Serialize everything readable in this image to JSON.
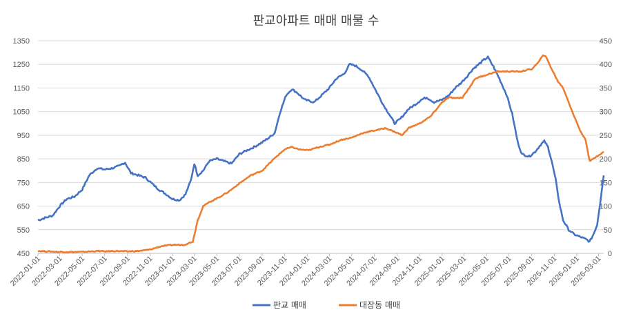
{
  "chart_data": {
    "type": "line",
    "title": "판교아파트 매매 매물 수",
    "x_start": "2022-01-01",
    "x_end": "2026-03-15",
    "x_tick_labels": [
      "2022-01-01",
      "2022-03-01",
      "2022-05-01",
      "2022-07-01",
      "2022-09-01",
      "2022-11-01",
      "2023-01-01",
      "2023-03-01",
      "2023-05-01",
      "2023-07-01",
      "2023-09-01",
      "2023-11-01",
      "2024-01-01",
      "2024-03-01",
      "2024-05-01",
      "2024-07-01",
      "2024-09-01",
      "2024-11-01",
      "2025-01-01",
      "2025-03-01",
      "2025-05-01",
      "2025-07-01",
      "2025-09-01",
      "2025-11-01",
      "2026-01-01",
      "2026-03-01"
    ],
    "y_left": {
      "min": 450,
      "max": 1350,
      "ticks": [
        450,
        550,
        650,
        750,
        850,
        950,
        1050,
        1150,
        1250,
        1350
      ]
    },
    "y_right": {
      "min": 0,
      "max": 450,
      "ticks": [
        0,
        50,
        100,
        150,
        200,
        250,
        300,
        350,
        400,
        450
      ]
    },
    "grid": true,
    "legend_position": "bottom",
    "series": [
      {
        "name": "판교 매매",
        "axis": "left",
        "color": "#4472C4",
        "points": [
          [
            "2022-01-01",
            590
          ],
          [
            "2022-01-20",
            600
          ],
          [
            "2022-02-10",
            610
          ],
          [
            "2022-03-01",
            650
          ],
          [
            "2022-03-20",
            680
          ],
          [
            "2022-04-10",
            690
          ],
          [
            "2022-05-01",
            720
          ],
          [
            "2022-05-20",
            780
          ],
          [
            "2022-06-10",
            810
          ],
          [
            "2022-07-01",
            805
          ],
          [
            "2022-07-20",
            810
          ],
          [
            "2022-08-10",
            820
          ],
          [
            "2022-08-25",
            835
          ],
          [
            "2022-09-10",
            790
          ],
          [
            "2022-10-01",
            780
          ],
          [
            "2022-10-20",
            770
          ],
          [
            "2022-11-10",
            740
          ],
          [
            "2022-11-25",
            720
          ],
          [
            "2022-12-15",
            700
          ],
          [
            "2023-01-01",
            680
          ],
          [
            "2023-01-20",
            675
          ],
          [
            "2023-02-05",
            700
          ],
          [
            "2023-02-20",
            760
          ],
          [
            "2023-03-01",
            830
          ],
          [
            "2023-03-10",
            780
          ],
          [
            "2023-03-25",
            800
          ],
          [
            "2023-04-10",
            840
          ],
          [
            "2023-05-01",
            850
          ],
          [
            "2023-05-20",
            840
          ],
          [
            "2023-06-10",
            830
          ],
          [
            "2023-07-01",
            870
          ],
          [
            "2023-07-20",
            885
          ],
          [
            "2023-08-10",
            900
          ],
          [
            "2023-09-01",
            920
          ],
          [
            "2023-09-20",
            940
          ],
          [
            "2023-10-05",
            960
          ],
          [
            "2023-10-20",
            1050
          ],
          [
            "2023-11-05",
            1120
          ],
          [
            "2023-11-20",
            1145
          ],
          [
            "2023-12-05",
            1130
          ],
          [
            "2023-12-25",
            1100
          ],
          [
            "2024-01-20",
            1090
          ],
          [
            "2024-02-10",
            1120
          ],
          [
            "2024-03-01",
            1150
          ],
          [
            "2024-03-20",
            1190
          ],
          [
            "2024-04-10",
            1210
          ],
          [
            "2024-04-25",
            1250
          ],
          [
            "2024-05-10",
            1245
          ],
          [
            "2024-05-25",
            1230
          ],
          [
            "2024-06-15",
            1200
          ],
          [
            "2024-07-05",
            1140
          ],
          [
            "2024-07-25",
            1080
          ],
          [
            "2024-08-10",
            1040
          ],
          [
            "2024-08-25",
            1000
          ],
          [
            "2024-09-10",
            1020
          ],
          [
            "2024-10-01",
            1060
          ],
          [
            "2024-10-20",
            1080
          ],
          [
            "2024-11-05",
            1100
          ],
          [
            "2024-11-20",
            1110
          ],
          [
            "2024-12-10",
            1090
          ],
          [
            "2025-01-01",
            1100
          ],
          [
            "2025-01-20",
            1120
          ],
          [
            "2025-02-05",
            1150
          ],
          [
            "2025-02-20",
            1170
          ],
          [
            "2025-03-10",
            1200
          ],
          [
            "2025-03-25",
            1230
          ],
          [
            "2025-04-10",
            1250
          ],
          [
            "2025-04-25",
            1270
          ],
          [
            "2025-05-05",
            1280
          ],
          [
            "2025-05-20",
            1240
          ],
          [
            "2025-06-05",
            1190
          ],
          [
            "2025-06-25",
            1120
          ],
          [
            "2025-07-10",
            1040
          ],
          [
            "2025-07-25",
            920
          ],
          [
            "2025-08-05",
            870
          ],
          [
            "2025-08-25",
            860
          ],
          [
            "2025-09-10",
            880
          ],
          [
            "2025-09-25",
            910
          ],
          [
            "2025-10-05",
            925
          ],
          [
            "2025-10-15",
            900
          ],
          [
            "2025-10-25",
            840
          ],
          [
            "2025-11-05",
            760
          ],
          [
            "2025-11-15",
            660
          ],
          [
            "2025-11-25",
            590
          ],
          [
            "2025-12-10",
            550
          ],
          [
            "2025-12-25",
            530
          ],
          [
            "2026-01-10",
            520
          ],
          [
            "2026-01-25",
            510
          ],
          [
            "2026-02-05",
            500
          ],
          [
            "2026-02-15",
            530
          ],
          [
            "2026-02-25",
            570
          ],
          [
            "2026-03-05",
            660
          ],
          [
            "2026-03-15",
            780
          ]
        ]
      },
      {
        "name": "대장동 매매",
        "axis": "right",
        "color": "#ED7D31",
        "points": [
          [
            "2022-01-01",
            5
          ],
          [
            "2022-03-01",
            3
          ],
          [
            "2022-05-01",
            3
          ],
          [
            "2022-06-15",
            5
          ],
          [
            "2022-07-01",
            4
          ],
          [
            "2022-08-01",
            5
          ],
          [
            "2022-09-01",
            4
          ],
          [
            "2022-10-01",
            5
          ],
          [
            "2022-11-01",
            8
          ],
          [
            "2022-12-01",
            15
          ],
          [
            "2023-01-01",
            18
          ],
          [
            "2023-02-01",
            18
          ],
          [
            "2023-02-25",
            25
          ],
          [
            "2023-03-10",
            70
          ],
          [
            "2023-03-25",
            100
          ],
          [
            "2023-04-15",
            110
          ],
          [
            "2023-05-10",
            120
          ],
          [
            "2023-06-01",
            130
          ],
          [
            "2023-07-01",
            148
          ],
          [
            "2023-08-01",
            165
          ],
          [
            "2023-09-01",
            175
          ],
          [
            "2023-09-20",
            190
          ],
          [
            "2023-10-10",
            205
          ],
          [
            "2023-11-01",
            220
          ],
          [
            "2023-11-20",
            225
          ],
          [
            "2023-12-10",
            220
          ],
          [
            "2024-01-05",
            218
          ],
          [
            "2024-02-01",
            225
          ],
          [
            "2024-03-01",
            230
          ],
          [
            "2024-04-01",
            240
          ],
          [
            "2024-05-01",
            245
          ],
          [
            "2024-06-01",
            255
          ],
          [
            "2024-07-01",
            260
          ],
          [
            "2024-08-01",
            265
          ],
          [
            "2024-09-01",
            255
          ],
          [
            "2024-09-15",
            250
          ],
          [
            "2024-10-01",
            265
          ],
          [
            "2024-11-01",
            275
          ],
          [
            "2024-12-01",
            290
          ],
          [
            "2025-01-01",
            320
          ],
          [
            "2025-01-20",
            330
          ],
          [
            "2025-02-10",
            328
          ],
          [
            "2025-02-25",
            330
          ],
          [
            "2025-03-15",
            350
          ],
          [
            "2025-04-01",
            370
          ],
          [
            "2025-04-20",
            375
          ],
          [
            "2025-05-10",
            380
          ],
          [
            "2025-06-01",
            385
          ],
          [
            "2025-07-01",
            385
          ],
          [
            "2025-08-01",
            385
          ],
          [
            "2025-09-01",
            390
          ],
          [
            "2025-09-20",
            405
          ],
          [
            "2025-10-01",
            420
          ],
          [
            "2025-10-10",
            415
          ],
          [
            "2025-10-25",
            390
          ],
          [
            "2025-11-10",
            365
          ],
          [
            "2025-11-25",
            350
          ],
          [
            "2025-12-10",
            320
          ],
          [
            "2025-12-25",
            290
          ],
          [
            "2026-01-10",
            260
          ],
          [
            "2026-01-25",
            240
          ],
          [
            "2026-02-05",
            195
          ],
          [
            "2026-02-15",
            200
          ],
          [
            "2026-03-01",
            208
          ],
          [
            "2026-03-15",
            215
          ]
        ]
      }
    ]
  }
}
